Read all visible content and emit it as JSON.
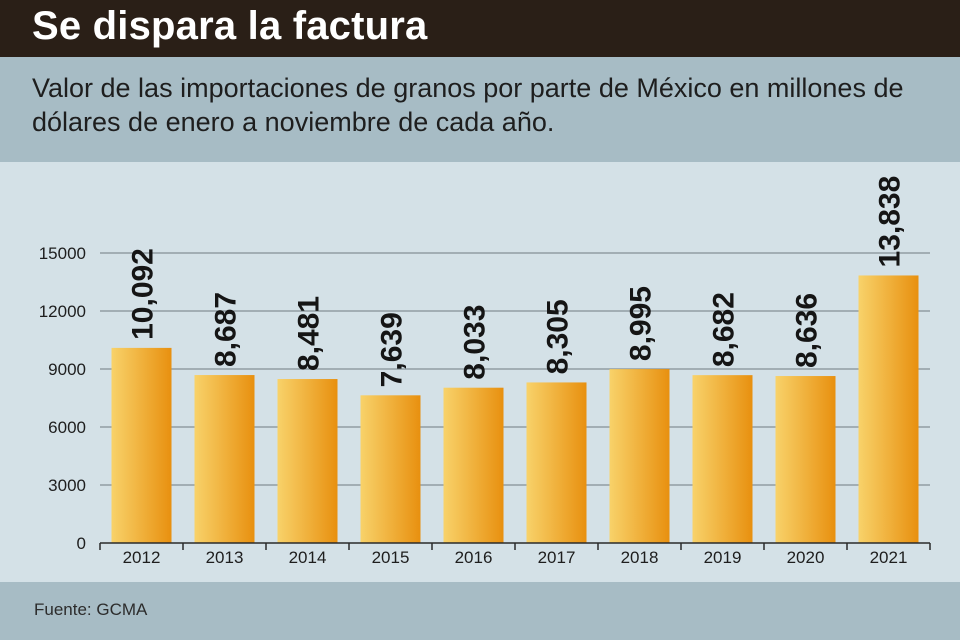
{
  "header": {
    "title": "Se dispara la factura",
    "subtitle": "Valor de las importaciones de granos por parte de México en millones de dólares de enero a noviembre de cada año."
  },
  "footer": {
    "source": "Fuente: GCMA"
  },
  "colors": {
    "title_bg": "#2a1f17",
    "band_bg": "#a7bcc5",
    "plot_bg": "#d4e1e7",
    "bar_light": "#f8d26a",
    "bar_dark": "#e8900f"
  },
  "chart_data": {
    "type": "bar",
    "title": "Se dispara la factura",
    "categories": [
      "2012",
      "2013",
      "2014",
      "2015",
      "2016",
      "2017",
      "2018",
      "2019",
      "2020",
      "2021"
    ],
    "values": [
      10092,
      8687,
      8481,
      7639,
      8033,
      8305,
      8995,
      8682,
      8636,
      13838
    ],
    "value_labels": [
      "10,092",
      "8,687",
      "8,481",
      "7,639",
      "8,033",
      "8,305",
      "8,995",
      "8,682",
      "8,636",
      "13,838"
    ],
    "yticks": [
      "0",
      "3000",
      "6000",
      "9000",
      "12000",
      "15000"
    ],
    "ylim": [
      0,
      15000
    ],
    "grid": true,
    "xlabel": "",
    "ylabel": ""
  }
}
